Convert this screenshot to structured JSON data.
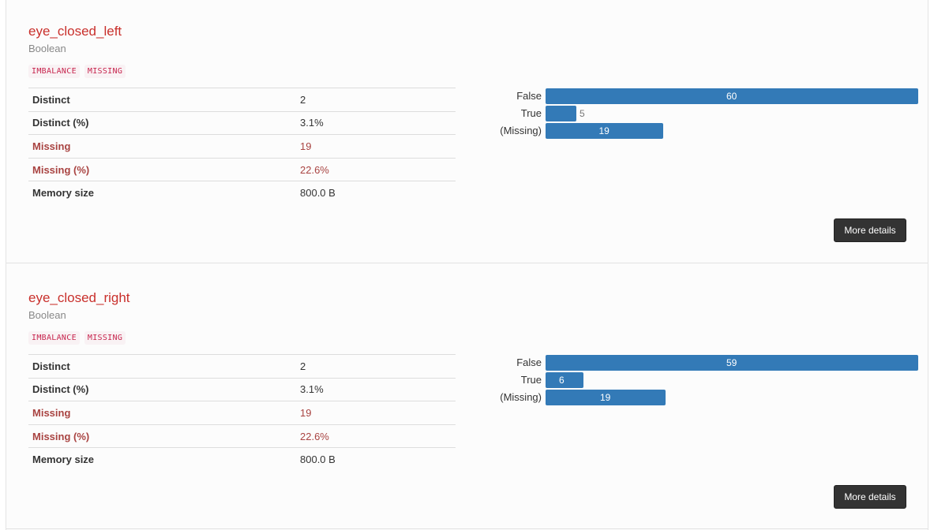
{
  "variables": [
    {
      "name": "eye_closed_left",
      "type": "Boolean",
      "badges": [
        "IMBALANCE",
        "MISSING"
      ],
      "stats": [
        {
          "label": "Distinct",
          "value": "2",
          "alert": false
        },
        {
          "label": "Distinct (%)",
          "value": "3.1%",
          "alert": false
        },
        {
          "label": "Missing",
          "value": "19",
          "alert": true
        },
        {
          "label": "Missing (%)",
          "value": "22.6%",
          "alert": true
        },
        {
          "label": "Memory size",
          "value": "800.0 B",
          "alert": false
        }
      ],
      "chart_data": {
        "type": "bar",
        "orientation": "horizontal",
        "categories": [
          "False",
          "True",
          "(Missing)"
        ],
        "values": [
          60,
          5,
          19
        ]
      },
      "more_label": "More details"
    },
    {
      "name": "eye_closed_right",
      "type": "Boolean",
      "badges": [
        "IMBALANCE",
        "MISSING"
      ],
      "stats": [
        {
          "label": "Distinct",
          "value": "2",
          "alert": false
        },
        {
          "label": "Distinct (%)",
          "value": "3.1%",
          "alert": false
        },
        {
          "label": "Missing",
          "value": "19",
          "alert": true
        },
        {
          "label": "Missing (%)",
          "value": "22.6%",
          "alert": true
        },
        {
          "label": "Memory size",
          "value": "800.0 B",
          "alert": false
        }
      ],
      "chart_data": {
        "type": "bar",
        "orientation": "horizontal",
        "categories": [
          "False",
          "True",
          "(Missing)"
        ],
        "values": [
          59,
          6,
          19
        ]
      },
      "more_label": "More details"
    }
  ]
}
